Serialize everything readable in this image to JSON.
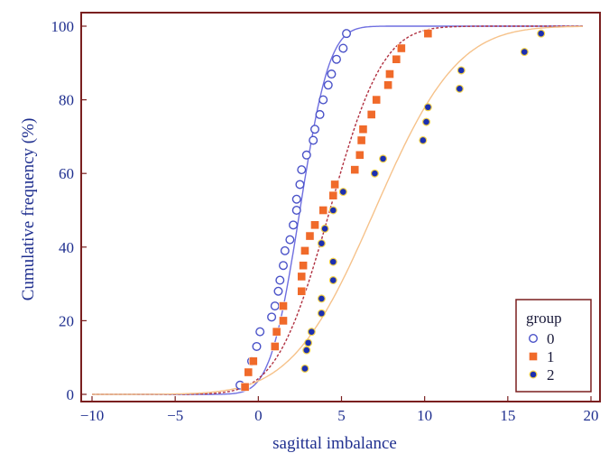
{
  "chart_data": {
    "type": "scatter",
    "xlabel": "sagittal imbalance",
    "ylabel": "Cumulative frequency (%)",
    "xlim": [
      -10,
      20
    ],
    "ylim": [
      0,
      100
    ],
    "xticks": [
      -10,
      -5,
      0,
      5,
      10,
      15,
      20
    ],
    "yticks": [
      0,
      20,
      40,
      60,
      80,
      100
    ],
    "grid": false,
    "legend": {
      "title": "group",
      "placement": "bottom-right"
    },
    "series": [
      {
        "name": "0",
        "marker": "open-circle",
        "color": "#4a52c8",
        "points": [
          [
            -1.1,
            2.5
          ],
          [
            -0.4,
            9
          ],
          [
            -0.1,
            13
          ],
          [
            0.1,
            17
          ],
          [
            0.8,
            21
          ],
          [
            1.0,
            24
          ],
          [
            1.2,
            28
          ],
          [
            1.3,
            31
          ],
          [
            1.5,
            35
          ],
          [
            1.6,
            39
          ],
          [
            1.9,
            42
          ],
          [
            2.1,
            46
          ],
          [
            2.3,
            50
          ],
          [
            2.3,
            53
          ],
          [
            2.5,
            57
          ],
          [
            2.6,
            61
          ],
          [
            2.9,
            65
          ],
          [
            3.3,
            69
          ],
          [
            3.4,
            72
          ],
          [
            3.7,
            76
          ],
          [
            3.9,
            80
          ],
          [
            4.2,
            84
          ],
          [
            4.4,
            87
          ],
          [
            4.7,
            91
          ],
          [
            5.1,
            94
          ],
          [
            5.3,
            98
          ]
        ],
        "fit": {
          "mu": 2.5,
          "sigma": 1.4
        }
      },
      {
        "name": "1",
        "marker": "square",
        "color": "#f06a2a",
        "points": [
          [
            -0.8,
            2
          ],
          [
            -0.6,
            6
          ],
          [
            -0.3,
            9
          ],
          [
            1.0,
            13
          ],
          [
            1.1,
            17
          ],
          [
            1.5,
            20
          ],
          [
            1.5,
            24
          ],
          [
            2.6,
            28
          ],
          [
            2.6,
            32
          ],
          [
            2.7,
            35
          ],
          [
            2.8,
            39
          ],
          [
            3.1,
            43
          ],
          [
            3.4,
            46
          ],
          [
            3.9,
            50
          ],
          [
            4.5,
            54
          ],
          [
            4.6,
            57
          ],
          [
            5.8,
            61
          ],
          [
            6.1,
            65
          ],
          [
            6.2,
            69
          ],
          [
            6.3,
            72
          ],
          [
            6.8,
            76
          ],
          [
            7.1,
            80
          ],
          [
            7.8,
            84
          ],
          [
            7.9,
            87
          ],
          [
            8.3,
            91
          ],
          [
            8.6,
            94
          ],
          [
            10.2,
            98
          ]
        ],
        "fit": {
          "mu": 4.3,
          "sigma": 2.5
        }
      },
      {
        "name": "2",
        "marker": "filled-circle",
        "color": "#1c2fb0",
        "points": [
          [
            2.8,
            7
          ],
          [
            2.9,
            12
          ],
          [
            3.0,
            14
          ],
          [
            3.2,
            17
          ],
          [
            3.8,
            22
          ],
          [
            3.8,
            26
          ],
          [
            4.5,
            31
          ],
          [
            4.5,
            36
          ],
          [
            3.8,
            41
          ],
          [
            4.0,
            45
          ],
          [
            4.5,
            50
          ],
          [
            5.1,
            55
          ],
          [
            7.0,
            60
          ],
          [
            7.5,
            64
          ],
          [
            9.9,
            69
          ],
          [
            10.1,
            74
          ],
          [
            10.2,
            78
          ],
          [
            12.1,
            83
          ],
          [
            12.2,
            88
          ],
          [
            16.0,
            93
          ],
          [
            17.0,
            98
          ]
        ],
        "fit": {
          "mu": 7.0,
          "sigma": 3.9
        }
      }
    ]
  },
  "colors": {
    "frame": "#7a1f1f",
    "axis_text": "#1f2f8f",
    "fit_0": "#6f6fe0",
    "fit_1": "#b03040",
    "fit_2": "#f6c28a"
  }
}
